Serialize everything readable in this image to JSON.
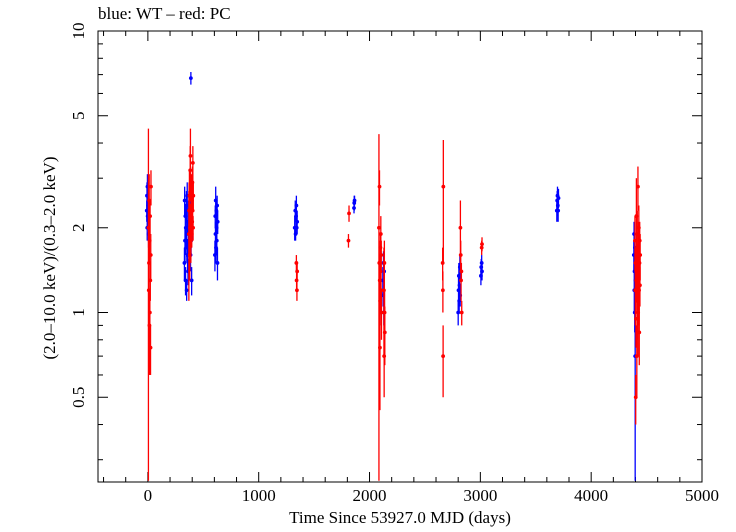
{
  "chart_data": {
    "type": "scatter",
    "title": "blue: WT – red: PC",
    "xlabel": "Time Since 53927.0 MJD (days)",
    "ylabel": "(2.0–10.0 keV)/(0.3–2.0 keV)",
    "xlim": [
      -450,
      5000
    ],
    "ylim": [
      0.25,
      10
    ],
    "y_scale": "log",
    "x_ticks": [
      0,
      1000,
      2000,
      3000,
      4000,
      5000
    ],
    "y_ticks": [
      0.5,
      1,
      2,
      5,
      10
    ],
    "grid": false,
    "colors": {
      "WT": "#0000ff",
      "PC": "#ff0000"
    },
    "series": [
      {
        "name": "WT",
        "points": [
          [
            -10,
            2.3,
            0.2
          ],
          [
            -8,
            2.6,
            0.3
          ],
          [
            -6,
            2.0,
            0.2
          ],
          [
            -4,
            2.8,
            0.3
          ],
          [
            -2,
            2.2,
            0.2
          ],
          [
            2,
            2.4,
            0.2
          ],
          [
            6,
            1.9,
            0.2
          ],
          [
            330,
            1.5,
            0.2
          ],
          [
            332,
            2.5,
            0.3
          ],
          [
            335,
            1.8,
            0.2
          ],
          [
            338,
            2.2,
            0.2
          ],
          [
            340,
            1.3,
            0.15
          ],
          [
            342,
            2.0,
            0.2
          ],
          [
            345,
            1.7,
            0.2
          ],
          [
            348,
            2.4,
            0.3
          ],
          [
            350,
            1.2,
            0.1
          ],
          [
            352,
            1.9,
            0.2
          ],
          [
            355,
            2.6,
            0.3
          ],
          [
            358,
            1.6,
            0.2
          ],
          [
            360,
            2.1,
            0.2
          ],
          [
            362,
            1.4,
            0.15
          ],
          [
            365,
            2.3,
            0.2
          ],
          [
            368,
            1.8,
            0.2
          ],
          [
            370,
            2.0,
            0.2
          ],
          [
            372,
            1.5,
            0.2
          ],
          [
            375,
            2.2,
            0.2
          ],
          [
            378,
            1.7,
            0.2
          ],
          [
            380,
            1.9,
            0.2
          ],
          [
            382,
            2.4,
            0.2
          ],
          [
            385,
            1.6,
            0.2
          ],
          [
            388,
            2.1,
            0.2
          ],
          [
            390,
            1.8,
            0.2
          ],
          [
            392,
            2.5,
            0.3
          ],
          [
            395,
            1.3,
            0.15
          ],
          [
            398,
            2.0,
            0.2
          ],
          [
            388,
            6.8,
            0.35
          ],
          [
            605,
            1.6,
            0.2
          ],
          [
            608,
            2.2,
            0.2
          ],
          [
            610,
            1.9,
            0.2
          ],
          [
            612,
            2.5,
            0.3
          ],
          [
            615,
            1.7,
            0.2
          ],
          [
            618,
            2.3,
            0.2
          ],
          [
            620,
            2.0,
            0.2
          ],
          [
            622,
            1.8,
            0.2
          ],
          [
            625,
            2.4,
            0.2
          ],
          [
            628,
            1.5,
            0.2
          ],
          [
            630,
            2.1,
            0.2
          ],
          [
            1325,
            2.0,
            0.2
          ],
          [
            1330,
            2.3,
            0.2
          ],
          [
            1333,
            1.9,
            0.1
          ],
          [
            1337,
            2.2,
            0.2
          ],
          [
            1340,
            2.4,
            0.2
          ],
          [
            1343,
            2.0,
            0.1
          ],
          [
            1347,
            2.1,
            0.2
          ],
          [
            1860,
            2.35,
            0.1
          ],
          [
            1862,
            2.45,
            0.15
          ],
          [
            1865,
            2.5,
            0.1
          ],
          [
            2120,
            1.3,
            0.15
          ],
          [
            2123,
            1.15,
            0.1
          ],
          [
            2126,
            1.5,
            0.15
          ],
          [
            2129,
            1.0,
            0.1
          ],
          [
            2132,
            1.4,
            0.15
          ],
          [
            2800,
            1.0,
            0.1
          ],
          [
            2803,
            1.2,
            0.15
          ],
          [
            2806,
            1.35,
            0.15
          ],
          [
            2809,
            1.1,
            0.1
          ],
          [
            2812,
            1.25,
            0.1
          ],
          [
            2815,
            1.45,
            0.15
          ],
          [
            2818,
            1.15,
            0.1
          ],
          [
            3005,
            1.35,
            0.1
          ],
          [
            3008,
            1.45,
            0.1
          ],
          [
            3012,
            1.5,
            0.1
          ],
          [
            3015,
            1.4,
            0.1
          ],
          [
            3690,
            2.3,
            0.2
          ],
          [
            3693,
            2.5,
            0.2
          ],
          [
            3696,
            2.6,
            0.2
          ],
          [
            3699,
            2.4,
            0.2
          ],
          [
            3702,
            2.3,
            0.2
          ],
          [
            3705,
            2.55,
            0.2
          ],
          [
            4385,
            1.6,
            0.2
          ],
          [
            4387,
            1.9,
            0.2
          ],
          [
            4389,
            1.2,
            0.2
          ],
          [
            4391,
            1.4,
            0.2
          ],
          [
            4393,
            1.0,
            0.15
          ],
          [
            4395,
            1.7,
            0.2
          ],
          [
            4397,
            0.7,
            0.5
          ],
          [
            4399,
            1.3,
            0.2
          ],
          [
            4401,
            1.5,
            0.2
          ]
        ]
      },
      {
        "name": "PC",
        "points": [
          [
            5,
            2.0,
            2.5
          ],
          [
            8,
            1.2,
            0.3
          ],
          [
            10,
            1.5,
            0.4
          ],
          [
            12,
            2.5,
            0.6
          ],
          [
            14,
            0.9,
            0.3
          ],
          [
            16,
            1.8,
            0.3
          ],
          [
            18,
            1.0,
            0.2
          ],
          [
            20,
            2.2,
            0.3
          ],
          [
            22,
            1.3,
            0.2
          ],
          [
            24,
            0.75,
            0.15
          ],
          [
            26,
            1.6,
            0.3
          ],
          [
            28,
            2.8,
            0.4
          ],
          [
            370,
            1.9,
            0.8
          ],
          [
            372,
            2.3,
            0.6
          ],
          [
            375,
            2.6,
            0.6
          ],
          [
            378,
            1.6,
            0.3
          ],
          [
            380,
            2.0,
            0.3
          ],
          [
            382,
            3.2,
            0.7
          ],
          [
            384,
            3.6,
            0.9
          ],
          [
            386,
            2.1,
            0.3
          ],
          [
            388,
            1.8,
            0.3
          ],
          [
            390,
            2.4,
            0.3
          ],
          [
            392,
            2.2,
            0.3
          ],
          [
            394,
            2.7,
            0.4
          ],
          [
            396,
            1.9,
            0.2
          ],
          [
            398,
            2.5,
            0.3
          ],
          [
            400,
            2.1,
            0.2
          ],
          [
            402,
            2.9,
            0.4
          ],
          [
            404,
            2.3,
            0.3
          ],
          [
            406,
            3.4,
            0.5
          ],
          [
            408,
            2.0,
            0.2
          ],
          [
            410,
            2.6,
            0.3
          ],
          [
            1340,
            1.5,
            0.1
          ],
          [
            1342,
            1.3,
            0.1
          ],
          [
            1345,
            1.2,
            0.1
          ],
          [
            1347,
            1.4,
            0.1
          ],
          [
            1810,
            1.8,
            0.1
          ],
          [
            1815,
            2.25,
            0.15
          ],
          [
            2085,
            2.0,
            2.3
          ],
          [
            2088,
            1.5,
            0.3
          ],
          [
            2090,
            2.8,
            0.4
          ],
          [
            2092,
            1.3,
            0.3
          ],
          [
            2094,
            0.75,
            0.3
          ],
          [
            2096,
            1.1,
            0.2
          ],
          [
            2098,
            1.7,
            0.2
          ],
          [
            2100,
            1.4,
            0.2
          ],
          [
            2102,
            1.9,
            0.3
          ],
          [
            2104,
            1.2,
            0.2
          ],
          [
            2106,
            1.6,
            0.2
          ],
          [
            2108,
            1.0,
            0.2
          ],
          [
            2130,
            1.2,
            0.5
          ],
          [
            2132,
            0.7,
            0.2
          ],
          [
            2134,
            1.5,
            0.3
          ],
          [
            2136,
            1.0,
            0.2
          ],
          [
            2138,
            0.85,
            0.2
          ],
          [
            2660,
            1.5,
            0.2
          ],
          [
            2662,
            1.2,
            0.2
          ],
          [
            2664,
            0.7,
            0.2
          ],
          [
            2666,
            2.8,
            1.3
          ],
          [
            2820,
            2.0,
            0.5
          ],
          [
            2823,
            1.6,
            0.2
          ],
          [
            2826,
            1.3,
            0.2
          ],
          [
            2829,
            1.4,
            0.1
          ],
          [
            2832,
            1.0,
            0.1
          ],
          [
            3012,
            1.7,
            0.1
          ],
          [
            3015,
            1.75,
            0.1
          ],
          [
            4395,
            1.8,
            0.4
          ],
          [
            4398,
            1.2,
            0.3
          ],
          [
            4400,
            1.5,
            0.2
          ],
          [
            4402,
            0.5,
            0.1
          ],
          [
            4404,
            0.95,
            0.2
          ],
          [
            4406,
            1.3,
            0.3
          ],
          [
            4408,
            2.2,
            0.8
          ],
          [
            4410,
            1.4,
            0.3
          ],
          [
            4412,
            0.7,
            0.2
          ],
          [
            4414,
            1.6,
            0.3
          ],
          [
            4416,
            1.9,
            0.4
          ],
          [
            4418,
            1.1,
            0.3
          ],
          [
            4420,
            1.45,
            0.3
          ],
          [
            4422,
            2.8,
            0.5
          ],
          [
            4424,
            1.0,
            0.3
          ],
          [
            4426,
            1.7,
            0.4
          ],
          [
            4428,
            1.3,
            0.2
          ],
          [
            4430,
            2.0,
            0.4
          ],
          [
            4432,
            1.2,
            0.3
          ],
          [
            4434,
            0.85,
            0.2
          ],
          [
            4436,
            1.5,
            0.2
          ],
          [
            4438,
            1.8,
            0.3
          ],
          [
            4440,
            1.25,
            0.2
          ],
          [
            4442,
            1.6,
            0.3
          ]
        ]
      }
    ]
  }
}
